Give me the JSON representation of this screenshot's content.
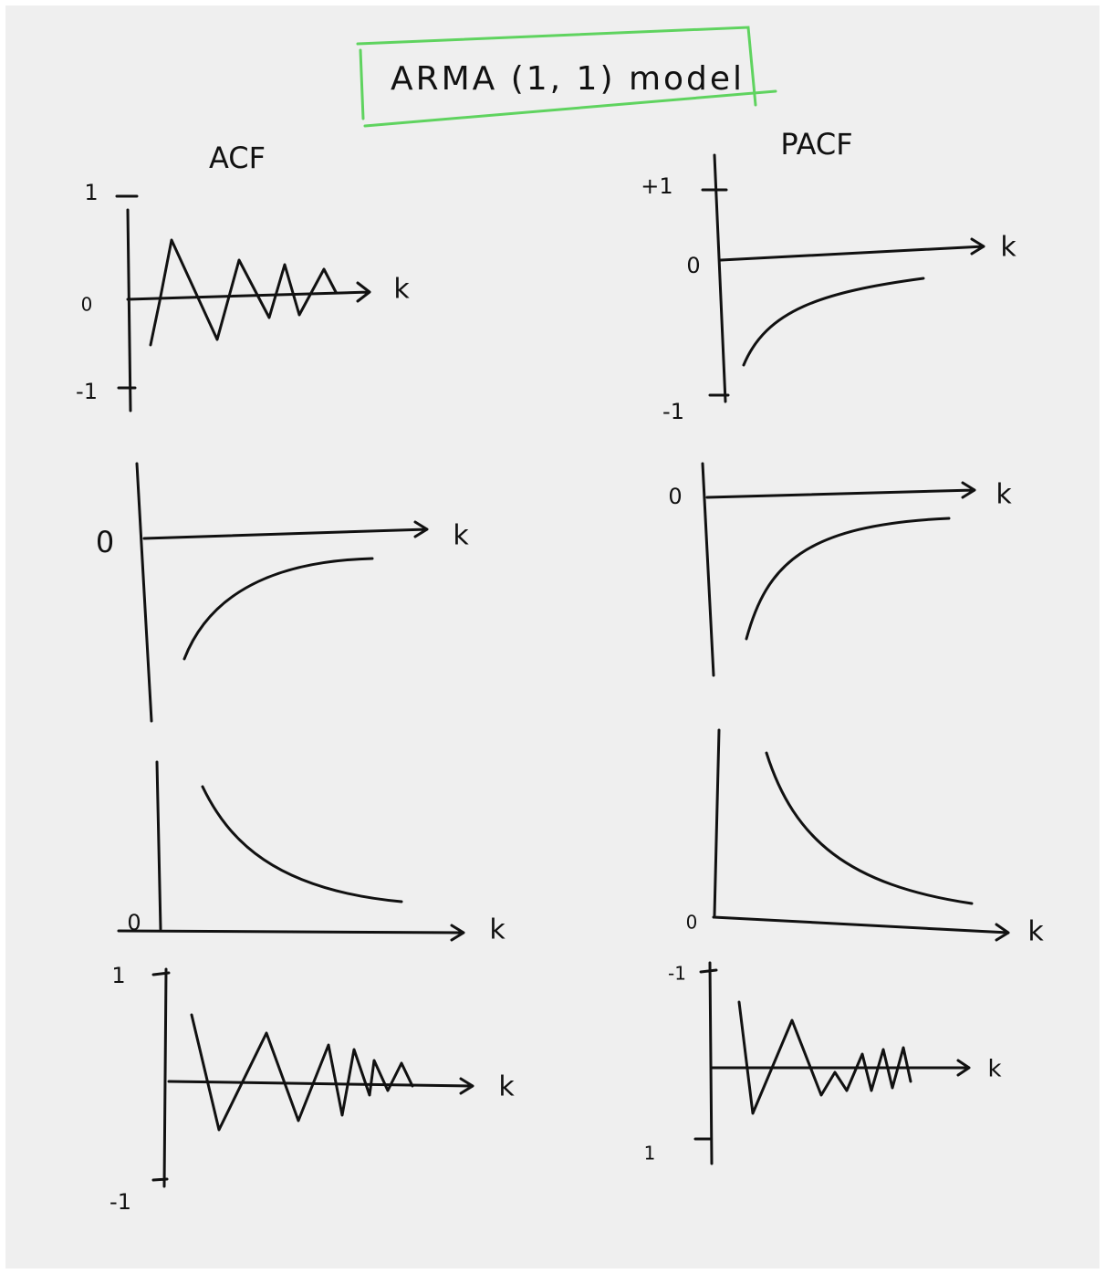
{
  "title": "ARMA (1, 1) model",
  "columns": [
    "ACF",
    "PACF"
  ],
  "panels": [
    {
      "labels": [
        "1",
        "0",
        "-1",
        "k"
      ]
    },
    {
      "labels": [
        "+1",
        "0",
        "-1",
        "k"
      ]
    },
    {
      "labels": [
        "0",
        "k"
      ]
    },
    {
      "labels": [
        "0",
        "k"
      ]
    },
    {
      "labels": [
        "0",
        "k"
      ]
    },
    {
      "labels": [
        "0",
        "k"
      ]
    },
    {
      "labels": [
        "1",
        "-1",
        "k"
      ]
    },
    {
      "labels": [
        "-1",
        "1",
        "k"
      ]
    }
  ]
}
